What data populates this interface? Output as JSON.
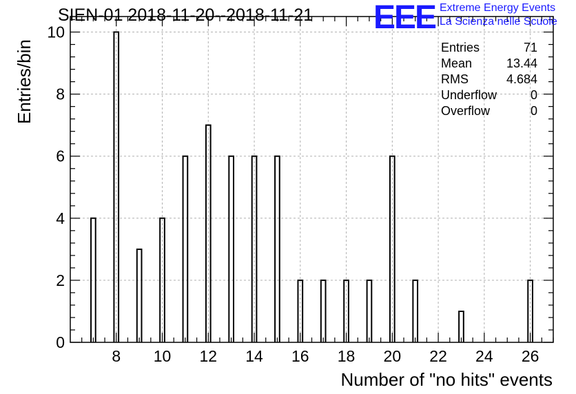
{
  "title": "SIEN-01 2018-11-20--2018-11-21",
  "logo": {
    "mark": "EEE",
    "line1": "Extreme Energy Events",
    "line2": "La Scienza nelle Scuole",
    "color": "#1a1aff"
  },
  "stats": [
    {
      "label": "Entries",
      "value": "71"
    },
    {
      "label": "Mean",
      "value": "13.44"
    },
    {
      "label": "RMS",
      "value": "4.684"
    },
    {
      "label": "Underflow",
      "value": "0"
    },
    {
      "label": "Overflow",
      "value": "0"
    }
  ],
  "chart_data": {
    "type": "bar",
    "title": "SIEN-01 2018-11-20--2018-11-21",
    "xlabel": "Number of \"no hits\" events",
    "ylabel": "Entries/bin",
    "xlim": [
      6,
      27
    ],
    "ylim": [
      0,
      10.5
    ],
    "xticks": [
      8,
      10,
      12,
      14,
      16,
      18,
      20,
      22,
      24,
      26
    ],
    "yticks": [
      0,
      2,
      4,
      6,
      8,
      10
    ],
    "grid": true,
    "bin_width": 0.2,
    "x": [
      7,
      8,
      9,
      10,
      11,
      12,
      13,
      14,
      15,
      16,
      17,
      18,
      19,
      20,
      21,
      23,
      26
    ],
    "values": [
      4,
      10,
      3,
      4,
      6,
      7,
      6,
      6,
      6,
      2,
      2,
      2,
      2,
      6,
      2,
      1,
      2
    ]
  }
}
